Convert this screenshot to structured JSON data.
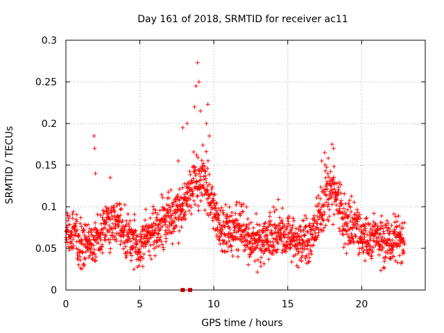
{
  "chart_data": {
    "type": "scatter",
    "title": "Day 161 of 2018, SRMTID for receiver ac11",
    "xlabel": "GPS time / hours",
    "ylabel": "SRMTID / TECUs",
    "xlim": [
      0,
      24.3
    ],
    "ylim": [
      0,
      0.3
    ],
    "grid": true,
    "marker": "+",
    "series_color": "#ff0000",
    "x_ticks": [
      0,
      5,
      10,
      15,
      20
    ],
    "x_tick_labels": [
      "0",
      "5",
      "10",
      "15",
      "20"
    ],
    "y_ticks": [
      0,
      0.05,
      0.1,
      0.15,
      0.2,
      0.25,
      0.3
    ],
    "y_tick_labels": [
      "0",
      "0.05",
      "0.1",
      "0.15",
      "0.2",
      "0.25",
      "0.3"
    ],
    "trend": {
      "x": [
        0,
        0.5,
        1,
        1.5,
        2,
        2.5,
        3,
        3.5,
        4,
        4.5,
        5,
        5.5,
        6,
        6.5,
        7,
        7.5,
        8,
        8.5,
        9,
        9.5,
        10,
        10.5,
        11,
        11.5,
        12,
        12.5,
        13,
        13.5,
        14,
        14.5,
        15,
        15.5,
        16,
        16.5,
        17,
        17.5,
        18,
        18.5,
        19,
        19.5,
        20,
        20.5,
        21,
        21.5,
        22,
        22.5,
        22.9
      ],
      "y": [
        0.065,
        0.07,
        0.055,
        0.05,
        0.06,
        0.075,
        0.08,
        0.085,
        0.065,
        0.06,
        0.055,
        0.065,
        0.07,
        0.075,
        0.085,
        0.09,
        0.105,
        0.12,
        0.135,
        0.13,
        0.095,
        0.075,
        0.07,
        0.075,
        0.07,
        0.06,
        0.055,
        0.06,
        0.065,
        0.07,
        0.065,
        0.06,
        0.055,
        0.06,
        0.08,
        0.11,
        0.12,
        0.1,
        0.08,
        0.075,
        0.065,
        0.06,
        0.065,
        0.055,
        0.06,
        0.065,
        0.06
      ]
    },
    "peaks": [
      {
        "x": 1.9,
        "y": 0.185
      },
      {
        "x": 1.95,
        "y": 0.17
      },
      {
        "x": 2.0,
        "y": 0.14
      },
      {
        "x": 3.0,
        "y": 0.135
      },
      {
        "x": 7.6,
        "y": 0.155
      },
      {
        "x": 7.9,
        "y": 0.195
      },
      {
        "x": 8.2,
        "y": 0.2
      },
      {
        "x": 8.7,
        "y": 0.22
      },
      {
        "x": 8.8,
        "y": 0.245
      },
      {
        "x": 8.9,
        "y": 0.273
      },
      {
        "x": 9.0,
        "y": 0.25
      },
      {
        "x": 9.1,
        "y": 0.215
      },
      {
        "x": 9.5,
        "y": 0.2
      },
      {
        "x": 9.6,
        "y": 0.223
      },
      {
        "x": 9.7,
        "y": 0.185
      },
      {
        "x": 17.3,
        "y": 0.155
      },
      {
        "x": 17.5,
        "y": 0.165
      },
      {
        "x": 18.0,
        "y": 0.175
      },
      {
        "x": 18.1,
        "y": 0.17
      }
    ],
    "outliers_at_zero": [
      {
        "x": 7.9,
        "y": 0
      },
      {
        "x": 8.4,
        "y": 0
      }
    ]
  }
}
